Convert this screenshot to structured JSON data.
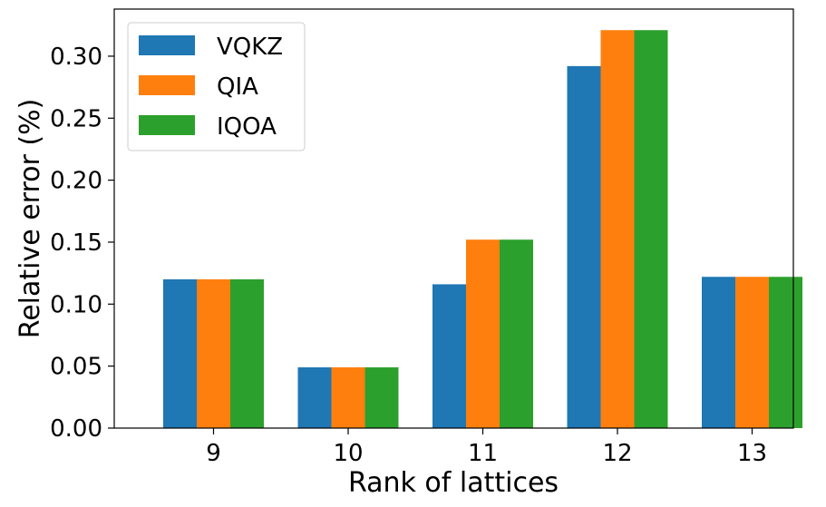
{
  "chart_data": {
    "type": "bar",
    "title": "",
    "xlabel": "Rank of lattices",
    "ylabel": "Relative error (%)",
    "categories": [
      "9",
      "10",
      "11",
      "12",
      "13"
    ],
    "series": [
      {
        "name": "VQKZ",
        "color": "#1f77b4",
        "values": [
          0.12,
          0.049,
          0.116,
          0.292,
          0.122
        ]
      },
      {
        "name": "QIA",
        "color": "#ff7f0e",
        "values": [
          0.12,
          0.049,
          0.152,
          0.321,
          0.122
        ]
      },
      {
        "name": "IQOA",
        "color": "#2ca02c",
        "values": [
          0.12,
          0.049,
          0.152,
          0.321,
          0.122
        ]
      }
    ],
    "ylim": [
      0,
      0.338
    ],
    "yticks": [
      "0.00",
      "0.05",
      "0.10",
      "0.15",
      "0.20",
      "0.25",
      "0.30"
    ],
    "grid": false,
    "legend_position": "top-left"
  }
}
